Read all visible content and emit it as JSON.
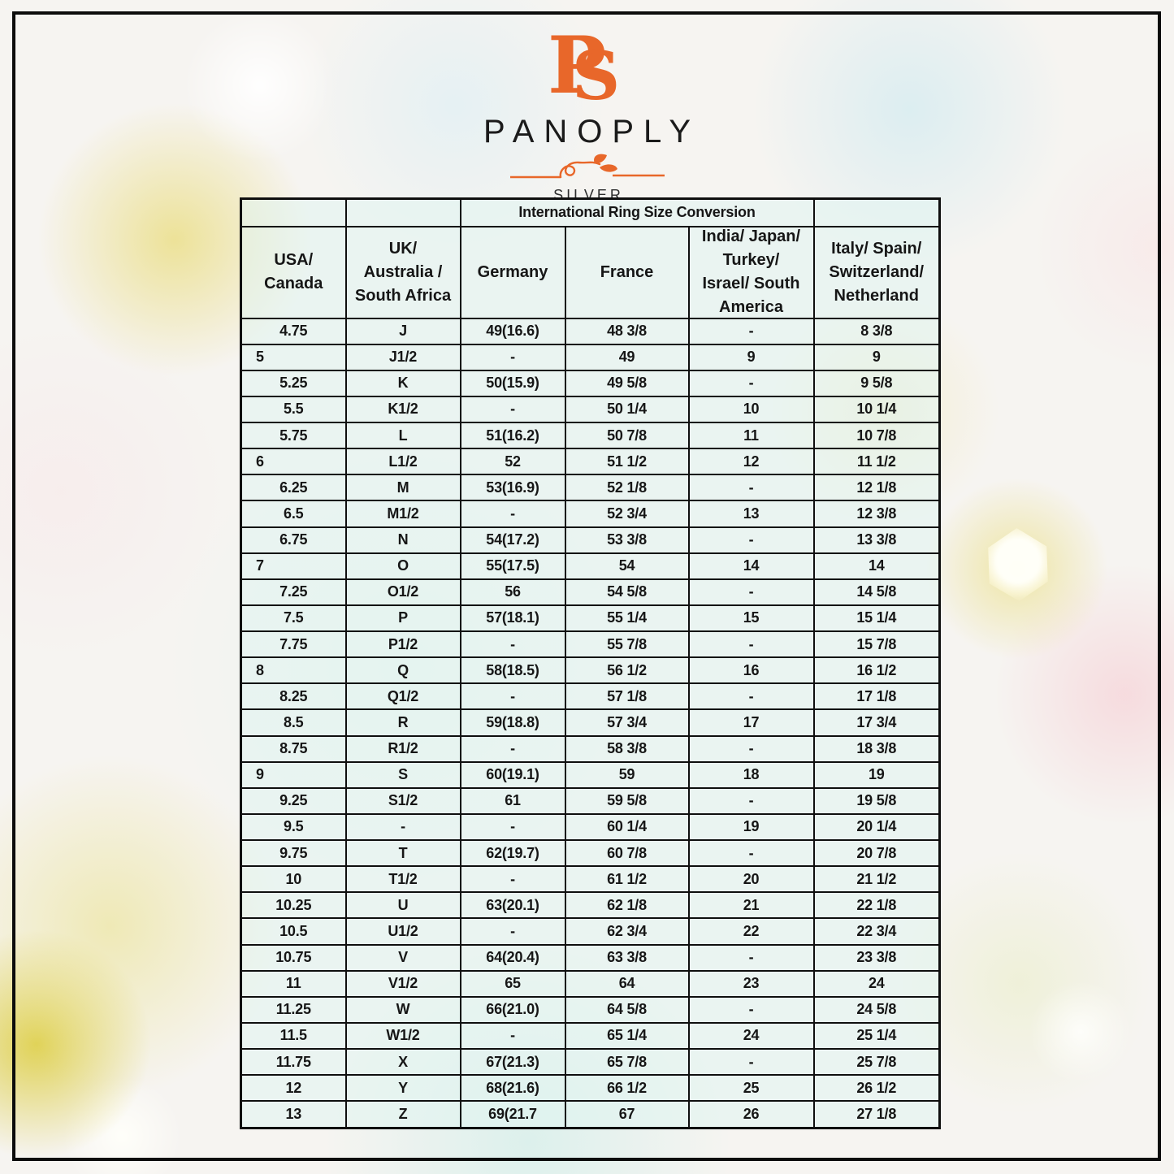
{
  "brand": {
    "monogram_p": "P",
    "monogram_s": "S",
    "name": "PANOPLY",
    "tagline": "SILVER"
  },
  "colors": {
    "accent_orange": "#E8672A",
    "table_cell_tint": "rgba(224,244,241,0.55)",
    "grid_line": "#0f0f0f",
    "text_ink": "#161616"
  },
  "table": {
    "title": "International Ring Size Conversion",
    "columns": [
      "USA/\nCanada",
      "UK/\nAustralia /\nSouth Africa",
      "Germany",
      "France",
      "India/ Japan/\nTurkey/\nIsrael/ South\nAmerica",
      "Italy/ Spain/\nSwitzerland/\nNetherland"
    ],
    "rows": [
      [
        "4.75",
        "J",
        "49(16.6)",
        "48 3/8",
        "-",
        "8 3/8"
      ],
      [
        "5",
        "J1/2",
        "-",
        "49",
        "9",
        "9"
      ],
      [
        "5.25",
        "K",
        "50(15.9)",
        "49 5/8",
        "-",
        "9 5/8"
      ],
      [
        "5.5",
        "K1/2",
        "-",
        "50 1/4",
        "10",
        "10 1/4"
      ],
      [
        "5.75",
        "L",
        "51(16.2)",
        "50 7/8",
        "11",
        "10 7/8"
      ],
      [
        "6",
        "L1/2",
        "52",
        "51 1/2",
        "12",
        "11 1/2"
      ],
      [
        "6.25",
        "M",
        "53(16.9)",
        "52 1/8",
        "-",
        "12 1/8"
      ],
      [
        "6.5",
        "M1/2",
        "-",
        "52 3/4",
        "13",
        "12 3/8"
      ],
      [
        "6.75",
        "N",
        "54(17.2)",
        "53 3/8",
        "-",
        "13 3/8"
      ],
      [
        "7",
        "O",
        "55(17.5)",
        "54",
        "14",
        "14"
      ],
      [
        "7.25",
        "O1/2",
        "56",
        "54 5/8",
        "-",
        "14 5/8"
      ],
      [
        "7.5",
        "P",
        "57(18.1)",
        "55 1/4",
        "15",
        "15 1/4"
      ],
      [
        "7.75",
        "P1/2",
        "-",
        "55 7/8",
        "-",
        "15 7/8"
      ],
      [
        "8",
        "Q",
        "58(18.5)",
        "56 1/2",
        "16",
        "16 1/2"
      ],
      [
        "8.25",
        "Q1/2",
        "-",
        "57 1/8",
        "-",
        "17 1/8"
      ],
      [
        "8.5",
        "R",
        "59(18.8)",
        "57 3/4",
        "17",
        "17 3/4"
      ],
      [
        "8.75",
        "R1/2",
        "-",
        "58 3/8",
        "-",
        "18 3/8"
      ],
      [
        "9",
        "S",
        "60(19.1)",
        "59",
        "18",
        "19"
      ],
      [
        "9.25",
        "S1/2",
        "61",
        "59 5/8",
        "-",
        "19 5/8"
      ],
      [
        "9.5",
        "-",
        "-",
        "60 1/4",
        "19",
        "20 1/4"
      ],
      [
        "9.75",
        "T",
        "62(19.7)",
        "60 7/8",
        "-",
        "20 7/8"
      ],
      [
        "10",
        "T1/2",
        "-",
        "61 1/2",
        "20",
        "21 1/2"
      ],
      [
        "10.25",
        "U",
        "63(20.1)",
        "62 1/8",
        "21",
        "22 1/8"
      ],
      [
        "10.5",
        "U1/2",
        "-",
        "62 3/4",
        "22",
        "22 3/4"
      ],
      [
        "10.75",
        "V",
        "64(20.4)",
        "63 3/8",
        "-",
        "23 3/8"
      ],
      [
        "11",
        "V1/2",
        "65",
        "64",
        "23",
        "24"
      ],
      [
        "11.25",
        "W",
        "66(21.0)",
        "64 5/8",
        "-",
        "24 5/8"
      ],
      [
        "11.5",
        "W1/2",
        "-",
        "65 1/4",
        "24",
        "25 1/4"
      ],
      [
        "11.75",
        "X",
        "67(21.3)",
        "65 7/8",
        "-",
        "25 7/8"
      ],
      [
        "12",
        "Y",
        "68(21.6)",
        "66 1/2",
        "25",
        "26 1/2"
      ],
      [
        "13",
        "Z",
        "69(21.7",
        "67",
        "26",
        "27 1/8"
      ]
    ]
  }
}
